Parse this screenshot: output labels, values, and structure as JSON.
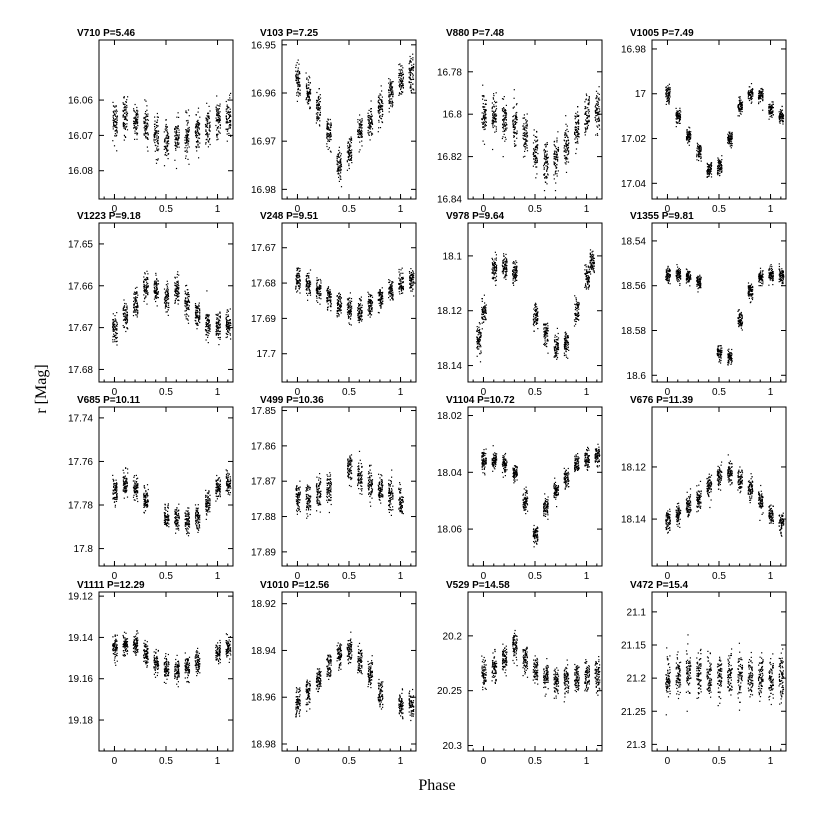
{
  "figure": {
    "ylabel": "r [Mag]",
    "xlabel": "Phase"
  },
  "chart_data": [
    {
      "type": "scatter",
      "title": "V710 P=5.46",
      "xlabel": "Phase",
      "ylabel": "r [Mag]",
      "xlim": [
        -0.15,
        1.15
      ],
      "ylim": [
        16.088,
        16.043
      ],
      "x_ticks": [
        0,
        0.5,
        1
      ],
      "x_tick_labels": [
        "0",
        "0.5",
        "1"
      ],
      "y_ticks": [
        16.06,
        16.07,
        16.08
      ],
      "y_tick_labels": [
        "16.06",
        "16.07",
        "16.08"
      ],
      "grid": false,
      "series": [
        {
          "phase": [
            0,
            0.1,
            0.2,
            0.3,
            0.4,
            0.5,
            0.6,
            0.7,
            0.8,
            0.9,
            1.0,
            1.1
          ],
          "r": [
            16.066,
            16.064,
            16.066,
            16.067,
            16.07,
            16.071,
            16.07,
            16.07,
            16.068,
            16.067,
            16.066,
            16.064
          ],
          "scatter": 0.005
        }
      ]
    },
    {
      "type": "scatter",
      "title": "V103 P=7.25",
      "xlabel": "Phase",
      "ylabel": "r [Mag]",
      "xlim": [
        -0.15,
        1.15
      ],
      "ylim": [
        16.982,
        16.949
      ],
      "x_ticks": [
        0,
        0.5,
        1
      ],
      "x_tick_labels": [
        "0",
        "0.5",
        "1"
      ],
      "y_ticks": [
        16.95,
        16.96,
        16.97,
        16.98
      ],
      "y_tick_labels": [
        "16.95",
        "16.96",
        "16.97",
        "16.98"
      ],
      "grid": false,
      "series": [
        {
          "phase": [
            0,
            0.1,
            0.2,
            0.3,
            0.4,
            0.5,
            0.6,
            0.7,
            0.8,
            0.9,
            1.0,
            1.1
          ],
          "r": [
            16.957,
            16.96,
            16.963,
            16.968,
            16.975,
            16.972,
            16.968,
            16.966,
            16.963,
            16.96,
            16.957,
            16.956
          ],
          "scatter": 0.003
        }
      ]
    },
    {
      "type": "scatter",
      "title": "V880 P=7.48",
      "xlabel": "Phase",
      "ylabel": "r [Mag]",
      "xlim": [
        -0.15,
        1.15
      ],
      "ylim": [
        16.84,
        16.765
      ],
      "x_ticks": [
        0,
        0.5,
        1
      ],
      "x_tick_labels": [
        "0",
        "0.5",
        "1"
      ],
      "y_ticks": [
        16.78,
        16.8,
        16.82,
        16.84
      ],
      "y_tick_labels": [
        "16.78",
        "16.8",
        "16.82",
        "16.84"
      ],
      "grid": false,
      "series": [
        {
          "phase": [
            0,
            0.1,
            0.2,
            0.3,
            0.4,
            0.5,
            0.6,
            0.7,
            0.8,
            0.9,
            1.0,
            1.1
          ],
          "r": [
            16.8,
            16.8,
            16.802,
            16.805,
            16.808,
            16.818,
            16.823,
            16.82,
            16.815,
            16.808,
            16.8,
            16.798
          ],
          "scatter": 0.009
        }
      ]
    },
    {
      "type": "scatter",
      "title": "V1005 P=7.49",
      "xlabel": "Phase",
      "ylabel": "r [Mag]",
      "xlim": [
        -0.15,
        1.15
      ],
      "ylim": [
        17.047,
        16.976
      ],
      "x_ticks": [
        0,
        0.5,
        1
      ],
      "x_tick_labels": [
        "0",
        "0.5",
        "1"
      ],
      "y_ticks": [
        16.98,
        17.0,
        17.02,
        17.04
      ],
      "y_tick_labels": [
        "16.98",
        "17",
        "17.02",
        "17.04"
      ],
      "grid": false,
      "series": [
        {
          "phase": [
            0,
            0.1,
            0.2,
            0.3,
            0.4,
            0.5,
            0.6,
            0.7,
            0.8,
            0.9,
            1.0,
            1.1
          ],
          "r": [
            17.0,
            17.01,
            17.018,
            17.026,
            17.034,
            17.032,
            17.02,
            17.005,
            17.0,
            17.0,
            17.007,
            17.01
          ],
          "scatter": 0.003
        }
      ]
    },
    {
      "type": "scatter",
      "title": "V1223 P=9.18",
      "xlabel": "Phase",
      "ylabel": "r [Mag]",
      "xlim": [
        -0.15,
        1.15
      ],
      "ylim": [
        17.683,
        17.645
      ],
      "x_ticks": [
        0,
        0.5,
        1
      ],
      "x_tick_labels": [
        "0",
        "0.5",
        "1"
      ],
      "y_ticks": [
        17.65,
        17.66,
        17.67,
        17.68
      ],
      "y_tick_labels": [
        "17.65",
        "17.66",
        "17.67",
        "17.68"
      ],
      "grid": false,
      "series": [
        {
          "phase": [
            0,
            0.1,
            0.2,
            0.3,
            0.4,
            0.5,
            0.6,
            0.7,
            0.8,
            0.9,
            1.0,
            1.1
          ],
          "r": [
            17.67,
            17.667,
            17.664,
            17.66,
            17.661,
            17.663,
            17.661,
            17.664,
            17.667,
            17.669,
            17.67,
            17.669
          ],
          "scatter": 0.003
        }
      ]
    },
    {
      "type": "scatter",
      "title": "V248 P=9.51",
      "xlabel": "Phase",
      "ylabel": "r [Mag]",
      "xlim": [
        -0.15,
        1.15
      ],
      "ylim": [
        17.708,
        17.663
      ],
      "x_ticks": [
        0,
        0.5,
        1
      ],
      "x_tick_labels": [
        "0",
        "0.5",
        "1"
      ],
      "y_ticks": [
        17.67,
        17.68,
        17.69,
        17.7
      ],
      "y_tick_labels": [
        "17.67",
        "17.68",
        "17.69",
        "17.7"
      ],
      "grid": false,
      "series": [
        {
          "phase": [
            0,
            0.1,
            0.2,
            0.3,
            0.4,
            0.5,
            0.6,
            0.7,
            0.8,
            0.9,
            1.0,
            1.1
          ],
          "r": [
            17.679,
            17.68,
            17.682,
            17.684,
            17.686,
            17.687,
            17.688,
            17.686,
            17.684,
            17.682,
            17.68,
            17.679
          ],
          "scatter": 0.003
        }
      ]
    },
    {
      "type": "scatter",
      "title": "V978 P=9.64",
      "xlabel": "Phase",
      "ylabel": "r [Mag]",
      "xlim": [
        -0.15,
        1.15
      ],
      "ylim": [
        18.146,
        18.088
      ],
      "x_ticks": [
        0,
        0.5,
        1
      ],
      "x_tick_labels": [
        "0",
        "0.5",
        "1"
      ],
      "y_ticks": [
        18.1,
        18.12,
        18.14
      ],
      "y_tick_labels": [
        "18.1",
        "18.12",
        "18.14"
      ],
      "grid": false,
      "series": [
        {
          "phase": [
            -0.05,
            0.0,
            0.1,
            0.2,
            0.3,
            0.5,
            0.6,
            0.7,
            0.8,
            0.9,
            1.0,
            1.05
          ],
          "r": [
            18.13,
            18.12,
            18.105,
            18.104,
            18.106,
            18.122,
            18.128,
            18.133,
            18.132,
            18.12,
            18.108,
            18.102
          ],
          "scatter": 0.004
        }
      ]
    },
    {
      "type": "scatter",
      "title": "V1355 P=9.81",
      "xlabel": "Phase",
      "ylabel": "r [Mag]",
      "xlim": [
        -0.15,
        1.15
      ],
      "ylim": [
        18.603,
        18.532
      ],
      "x_ticks": [
        0,
        0.5,
        1
      ],
      "x_tick_labels": [
        "0",
        "0.5",
        "1"
      ],
      "y_ticks": [
        18.54,
        18.56,
        18.58,
        18.6
      ],
      "y_tick_labels": [
        "18.54",
        "18.56",
        "18.58",
        "18.6"
      ],
      "grid": false,
      "series": [
        {
          "phase": [
            0,
            0.1,
            0.2,
            0.3,
            0.5,
            0.6,
            0.7,
            0.8,
            0.9,
            1.0,
            1.1
          ],
          "r": [
            18.555,
            18.555,
            18.556,
            18.558,
            18.59,
            18.592,
            18.575,
            18.562,
            18.556,
            18.555,
            18.555
          ],
          "scatter": 0.003
        }
      ]
    },
    {
      "type": "scatter",
      "title": "V685 P=10.11",
      "xlabel": "Phase",
      "ylabel": "r [Mag]",
      "xlim": [
        -0.15,
        1.15
      ],
      "ylim": [
        17.808,
        17.735
      ],
      "x_ticks": [
        0,
        0.5,
        1
      ],
      "x_tick_labels": [
        "0",
        "0.5",
        "1"
      ],
      "y_ticks": [
        17.74,
        17.76,
        17.78,
        17.8
      ],
      "y_tick_labels": [
        "17.74",
        "17.76",
        "17.78",
        "17.8"
      ],
      "grid": false,
      "series": [
        {
          "phase": [
            0,
            0.1,
            0.2,
            0.3,
            0.5,
            0.6,
            0.7,
            0.8,
            0.9,
            1.0,
            1.1
          ],
          "r": [
            17.773,
            17.77,
            17.772,
            17.777,
            17.785,
            17.786,
            17.787,
            17.786,
            17.779,
            17.772,
            17.77
          ],
          "scatter": 0.005
        }
      ]
    },
    {
      "type": "scatter",
      "title": "V499 P=10.36",
      "xlabel": "Phase",
      "ylabel": "r [Mag]",
      "xlim": [
        -0.15,
        1.15
      ],
      "ylim": [
        17.894,
        17.849
      ],
      "x_ticks": [
        0,
        0.5,
        1
      ],
      "x_tick_labels": [
        "0",
        "0.5",
        "1"
      ],
      "y_ticks": [
        17.85,
        17.86,
        17.87,
        17.88,
        17.89
      ],
      "y_tick_labels": [
        "17.85",
        "17.86",
        "17.87",
        "17.88",
        "17.89"
      ],
      "grid": false,
      "series": [
        {
          "phase": [
            0,
            0.1,
            0.2,
            0.3,
            0.5,
            0.6,
            0.7,
            0.8,
            0.9,
            1.0
          ],
          "r": [
            17.874,
            17.875,
            17.873,
            17.872,
            17.866,
            17.868,
            17.87,
            17.872,
            17.874,
            17.876
          ],
          "scatter": 0.004
        }
      ]
    },
    {
      "type": "scatter",
      "title": "V1104 P=10.72",
      "xlabel": "Phase",
      "ylabel": "r [Mag]",
      "xlim": [
        -0.15,
        1.15
      ],
      "ylim": [
        18.073,
        18.017
      ],
      "x_ticks": [
        0,
        0.5,
        1
      ],
      "x_tick_labels": [
        "0",
        "0.5",
        "1"
      ],
      "y_ticks": [
        18.02,
        18.04,
        18.06
      ],
      "y_tick_labels": [
        "18.02",
        "18.04",
        "18.06"
      ],
      "grid": false,
      "series": [
        {
          "phase": [
            0,
            0.1,
            0.2,
            0.3,
            0.4,
            0.5,
            0.6,
            0.7,
            0.8,
            0.9,
            1.0,
            1.1
          ],
          "r": [
            18.036,
            18.036,
            18.037,
            18.04,
            18.05,
            18.062,
            18.052,
            18.046,
            18.042,
            18.037,
            18.035,
            18.034
          ],
          "scatter": 0.003
        }
      ]
    },
    {
      "type": "scatter",
      "title": "V676 P=11.39",
      "xlabel": "Phase",
      "ylabel": "r [Mag]",
      "xlim": [
        -0.15,
        1.15
      ],
      "ylim": [
        18.158,
        18.097
      ],
      "x_ticks": [
        0,
        0.5,
        1
      ],
      "x_tick_labels": [
        "0",
        "0.5",
        "1"
      ],
      "y_ticks": [
        18.12,
        18.14
      ],
      "y_tick_labels": [
        "18.12",
        "18.14"
      ],
      "grid": false,
      "series": [
        {
          "phase": [
            0,
            0.1,
            0.2,
            0.3,
            0.4,
            0.5,
            0.6,
            0.7,
            0.8,
            0.9,
            1.0,
            1.1
          ],
          "r": [
            18.14,
            18.138,
            18.135,
            18.132,
            18.127,
            18.123,
            18.122,
            18.125,
            18.128,
            18.133,
            18.138,
            18.141
          ],
          "scatter": 0.004
        }
      ]
    },
    {
      "type": "scatter",
      "title": "V1111 P=12.29",
      "xlabel": "Phase",
      "ylabel": "r [Mag]",
      "xlim": [
        -0.15,
        1.15
      ],
      "ylim": [
        19.195,
        19.118
      ],
      "x_ticks": [
        0,
        0.5,
        1
      ],
      "x_tick_labels": [
        "0",
        "0.5",
        "1"
      ],
      "y_ticks": [
        19.12,
        19.14,
        19.16,
        19.18
      ],
      "y_tick_labels": [
        "19.12",
        "19.14",
        "19.16",
        "19.18"
      ],
      "grid": false,
      "series": [
        {
          "phase": [
            0,
            0.1,
            0.2,
            0.3,
            0.4,
            0.5,
            0.6,
            0.7,
            0.8,
            1.0,
            1.1
          ],
          "r": [
            19.145,
            19.143,
            19.143,
            19.147,
            19.152,
            19.155,
            19.156,
            19.154,
            19.152,
            19.147,
            19.145
          ],
          "scatter": 0.005
        }
      ]
    },
    {
      "type": "scatter",
      "title": "V1010 P=12.56",
      "xlabel": "Phase",
      "ylabel": "r [Mag]",
      "xlim": [
        -0.15,
        1.15
      ],
      "ylim": [
        18.983,
        18.915
      ],
      "x_ticks": [
        0,
        0.5,
        1
      ],
      "x_tick_labels": [
        "0",
        "0.5",
        "1"
      ],
      "y_ticks": [
        18.92,
        18.94,
        18.96,
        18.98
      ],
      "y_tick_labels": [
        "18.92",
        "18.94",
        "18.96",
        "18.98"
      ],
      "grid": false,
      "series": [
        {
          "phase": [
            0,
            0.1,
            0.2,
            0.3,
            0.4,
            0.5,
            0.6,
            0.7,
            0.8,
            1.0,
            1.1
          ],
          "r": [
            18.962,
            18.958,
            18.952,
            18.946,
            18.942,
            18.94,
            18.944,
            18.95,
            18.958,
            18.963,
            18.962
          ],
          "scatter": 0.005
        }
      ]
    },
    {
      "type": "scatter",
      "title": "V529 P=14.58",
      "xlabel": "Phase",
      "ylabel": "r [Mag]",
      "xlim": [
        -0.15,
        1.15
      ],
      "ylim": [
        20.305,
        20.16
      ],
      "x_ticks": [
        0,
        0.5,
        1
      ],
      "x_tick_labels": [
        "0",
        "0.5",
        "1"
      ],
      "y_ticks": [
        20.2,
        20.25,
        20.3
      ],
      "y_tick_labels": [
        "20.2",
        "20.25",
        "20.3"
      ],
      "grid": false,
      "series": [
        {
          "phase": [
            0,
            0.1,
            0.2,
            0.3,
            0.4,
            0.5,
            0.6,
            0.7,
            0.8,
            0.9,
            1.0,
            1.1
          ],
          "r": [
            20.235,
            20.228,
            20.22,
            20.21,
            20.22,
            20.232,
            20.238,
            20.24,
            20.24,
            20.238,
            20.236,
            20.235
          ],
          "scatter": 0.012
        }
      ]
    },
    {
      "type": "scatter",
      "title": "V472 P=15.4",
      "xlabel": "Phase",
      "ylabel": "r [Mag]",
      "xlim": [
        -0.15,
        1.15
      ],
      "ylim": [
        21.31,
        21.07
      ],
      "x_ticks": [
        0,
        0.5,
        1
      ],
      "x_tick_labels": [
        "0",
        "0.5",
        "1"
      ],
      "y_ticks": [
        21.1,
        21.15,
        21.2,
        21.25,
        21.3
      ],
      "y_tick_labels": [
        "21.1",
        "21.15",
        "21.2",
        "21.25",
        "21.3"
      ],
      "grid": false,
      "series": [
        {
          "phase": [
            0,
            0.1,
            0.2,
            0.3,
            0.4,
            0.5,
            0.6,
            0.7,
            0.8,
            0.9,
            1.0,
            1.1
          ],
          "r": [
            21.2,
            21.195,
            21.19,
            21.19,
            21.195,
            21.198,
            21.195,
            21.195,
            21.2,
            21.2,
            21.2,
            21.2
          ],
          "scatter": 0.03
        }
      ]
    }
  ]
}
